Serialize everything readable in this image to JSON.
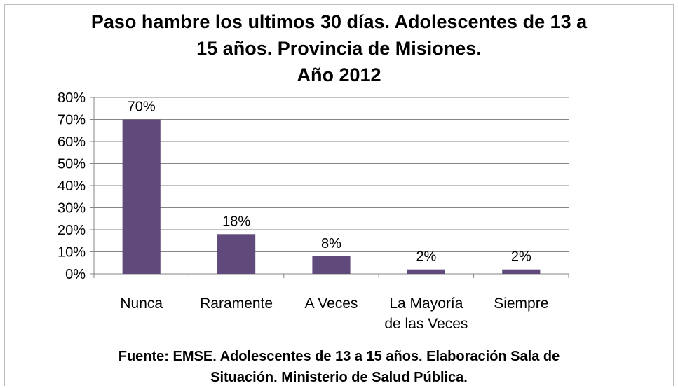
{
  "chart_data": {
    "type": "bar",
    "title_lines": [
      "Paso hambre los ultimos 30 días. Adolescentes de 13 a",
      "15 años. Provincia de Misiones.",
      "Año 2012"
    ],
    "categories": [
      [
        "Nunca"
      ],
      [
        "Raramente"
      ],
      [
        "A Veces"
      ],
      [
        "La Mayoría",
        "de las Veces"
      ],
      [
        "Siempre"
      ]
    ],
    "values": [
      70,
      18,
      8,
      2,
      2
    ],
    "data_labels": [
      "70%",
      "18%",
      "8%",
      "2%",
      "2%"
    ],
    "ylim": [
      0,
      80
    ],
    "yticks": [
      0,
      10,
      20,
      30,
      40,
      50,
      60,
      70,
      80
    ],
    "ytick_labels": [
      "0%",
      "10%",
      "20%",
      "30%",
      "40%",
      "50%",
      "60%",
      "70%",
      "80%"
    ],
    "bar_color": "#604A7B",
    "grid": true,
    "legend": "none",
    "source_lines": [
      "Fuente: EMSE. Adolescentes de 13 a 15 años. Elaboración Sala de",
      "Situación. Ministerio de Salud Pública."
    ]
  }
}
